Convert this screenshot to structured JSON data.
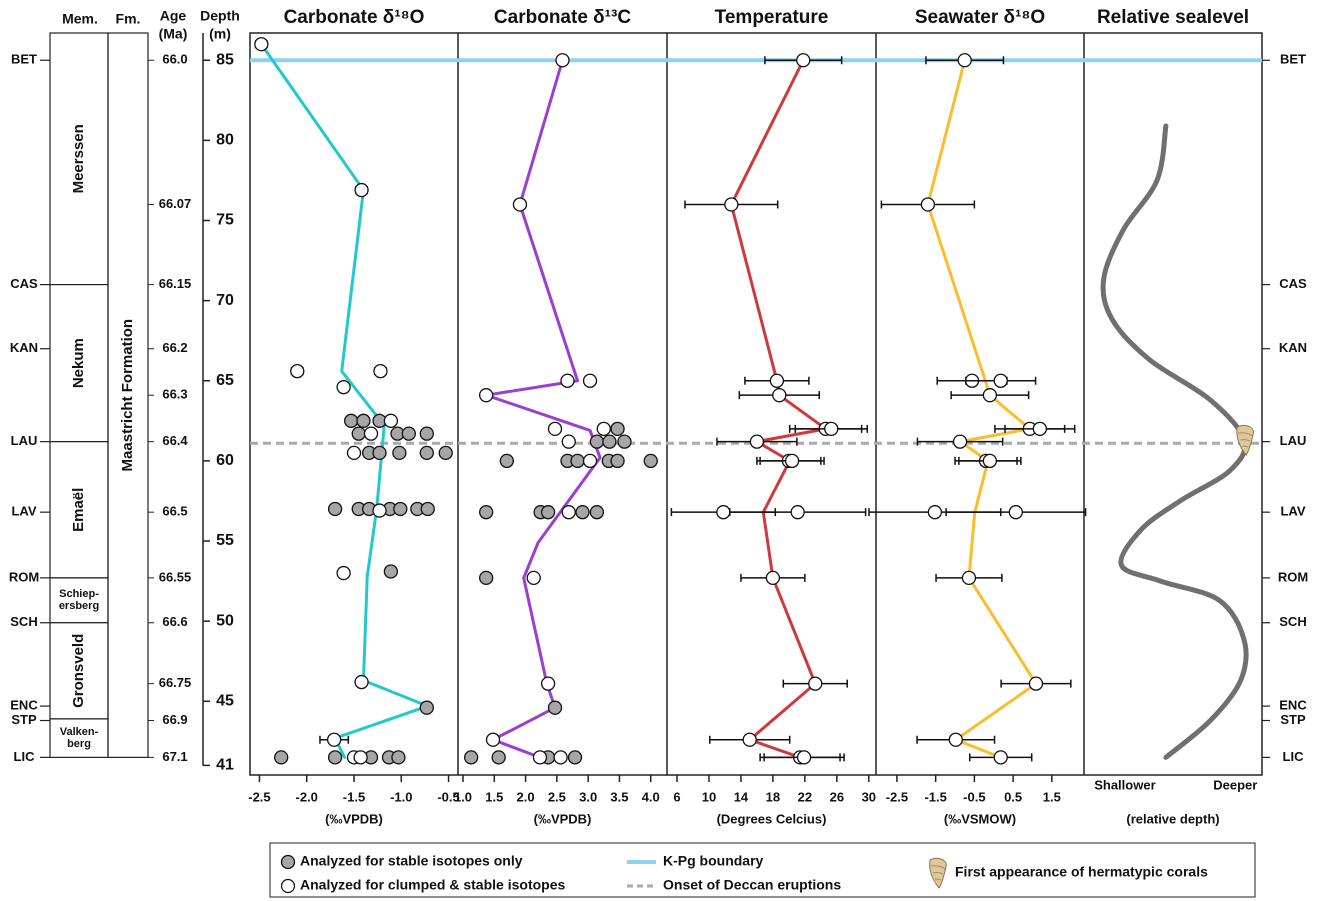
{
  "stratigraphy": {
    "member_header": "Mem.",
    "formation_header": "Fm.",
    "age_header": "Age",
    "age_unit": "(Ma)",
    "formation": "Maastricht Formation",
    "members": [
      {
        "lines": [
          "Meerssen"
        ],
        "base": 71.0
      },
      {
        "lines": [
          "Nekum"
        ],
        "base": 61.2
      },
      {
        "lines": [
          "Emaël"
        ],
        "base": 52.7
      },
      {
        "lines": [
          "Schiep-",
          "ersberg"
        ],
        "base": 49.9
      },
      {
        "lines": [
          "Gronsveld"
        ],
        "base": 43.9
      },
      {
        "lines": [
          "Valken-",
          "berg"
        ],
        "base": 41.5
      }
    ],
    "levels": [
      {
        "label": "BET",
        "depth": 85.0
      },
      {
        "label": "CAS",
        "depth": 71.0
      },
      {
        "label": "KAN",
        "depth": 67.0
      },
      {
        "label": "LAU",
        "depth": 61.2
      },
      {
        "label": "LAV",
        "depth": 56.8
      },
      {
        "label": "ROM",
        "depth": 52.7
      },
      {
        "label": "SCH",
        "depth": 49.9
      },
      {
        "label": "ENC",
        "depth": 44.7
      },
      {
        "label": "STP",
        "depth": 43.8
      },
      {
        "label": "LIC",
        "depth": 41.5
      }
    ],
    "ages": [
      {
        "label": "66.0",
        "depth": 85.0
      },
      {
        "label": "66.07",
        "depth": 76.0
      },
      {
        "label": "66.15",
        "depth": 71.0
      },
      {
        "label": "66.2",
        "depth": 67.0
      },
      {
        "label": "66.3",
        "depth": 64.1
      },
      {
        "label": "66.4",
        "depth": 61.2
      },
      {
        "label": "66.5",
        "depth": 56.8
      },
      {
        "label": "66.55",
        "depth": 52.7
      },
      {
        "label": "66.6",
        "depth": 49.9
      },
      {
        "label": "66.75",
        "depth": 46.1
      },
      {
        "label": "66.9",
        "depth": 43.8
      },
      {
        "label": "67.1",
        "depth": 41.5
      }
    ]
  },
  "depth_axis": {
    "label": "Depth",
    "unit": "(m)",
    "ylim": [
      40.4,
      86.7
    ],
    "yticks": [
      85,
      80,
      75,
      70,
      65,
      60,
      55,
      50,
      45,
      41
    ]
  },
  "chart_data": [
    {
      "type": "scatter",
      "title": "Carbonate δ¹⁸O",
      "xlabel": "(‰VPDB)",
      "xlim": [
        -2.6,
        -0.4
      ],
      "xticks": [
        -2.5,
        {
          "value": -2,
          "label": "-2.0"
        },
        -1.5,
        {
          "value": -1,
          "label": "-1.0"
        },
        -0.5
      ],
      "series": [
        {
          "style": "line",
          "color": "#22c8cc",
          "y": [
            86.0,
            76.9,
            65.6,
            62.2,
            57.0,
            52.8,
            46.3,
            44.7,
            42.7,
            41.5
          ],
          "values": [
            -2.48,
            -1.4,
            -1.63,
            -1.18,
            -1.26,
            -1.36,
            -1.4,
            -0.72,
            -1.7,
            -1.6
          ]
        },
        {
          "style": "points",
          "color": "#a6a6a6",
          "y": [
            62.5,
            62.5,
            62.5,
            61.7,
            61.7,
            61.7,
            61.7,
            60.5,
            60.5,
            60.5,
            60.5,
            60.5,
            57.0,
            57.0,
            57.0,
            57.0,
            57.0,
            57.0,
            57.0,
            53.1,
            44.6,
            41.5,
            41.5,
            41.5,
            41.5,
            41.5
          ],
          "values": [
            -1.53,
            -1.4,
            -1.23,
            -1.45,
            -1.04,
            -0.92,
            -0.73,
            -1.34,
            -1.23,
            -1.02,
            -0.73,
            -0.53,
            -1.7,
            -1.45,
            -1.34,
            -1.12,
            -1.01,
            -0.83,
            -0.72,
            -1.11,
            -0.73,
            -2.27,
            -1.7,
            -1.32,
            -1.13,
            -1.03
          ]
        },
        {
          "style": "points",
          "color": "#ffffff",
          "y": [
            86.0,
            76.9,
            65.6,
            65.6,
            64.6,
            62.5,
            61.7,
            60.5,
            56.9,
            53.0,
            46.2,
            42.6,
            41.5,
            41.5
          ],
          "values": [
            -2.48,
            -1.42,
            -2.1,
            -1.22,
            -1.61,
            -1.11,
            -1.32,
            -1.5,
            -1.23,
            -1.61,
            -1.42,
            -1.71,
            -1.5,
            -1.43
          ],
          "xerr": [
            0.06,
            0.06,
            0.06,
            0.06,
            0.05,
            0.05,
            0.05,
            0.05,
            0.05,
            0.05,
            0.05,
            0.15,
            0.05,
            0.05
          ]
        }
      ]
    },
    {
      "type": "scatter",
      "title": "Carbonate δ¹³C",
      "xlabel": "(‰VPDB)",
      "xlim": [
        0.92,
        4.26
      ],
      "xticks": [
        {
          "value": 1,
          "label": "1.0"
        },
        1.5,
        {
          "value": 2,
          "label": "2.0"
        },
        2.5,
        {
          "value": 3,
          "label": "3.0"
        },
        3.5,
        {
          "value": 4,
          "label": "4.0"
        }
      ],
      "series": [
        {
          "style": "line",
          "color": "#9a3fd0",
          "y": [
            85.0,
            76.0,
            65.0,
            64.1,
            61.9,
            60.2,
            54.9,
            52.7,
            46.1,
            44.6,
            42.6,
            41.5
          ],
          "values": [
            2.59,
            1.91,
            2.83,
            1.37,
            3.03,
            3.19,
            2.2,
            1.97,
            2.34,
            2.47,
            1.48,
            2.23
          ]
        },
        {
          "style": "points",
          "color": "#a6a6a6",
          "y": [
            62.0,
            61.2,
            61.2,
            61.2,
            60.0,
            60.0,
            60.0,
            60.0,
            60.0,
            60.0,
            56.8,
            56.8,
            56.8,
            56.8,
            56.8,
            52.7,
            44.6,
            41.5,
            41.5,
            41.5,
            41.5
          ],
          "values": [
            3.47,
            3.14,
            3.34,
            3.58,
            1.7,
            2.67,
            2.83,
            3.33,
            3.47,
            4.0,
            1.37,
            2.24,
            2.36,
            2.91,
            3.14,
            1.37,
            2.47,
            1.13,
            1.57,
            2.36,
            2.79
          ]
        },
        {
          "style": "points",
          "color": "#ffffff",
          "y": [
            85.0,
            76.0,
            65.0,
            65.0,
            64.1,
            62.0,
            62.0,
            61.2,
            60.0,
            56.8,
            52.7,
            46.1,
            42.6,
            41.5,
            41.5
          ],
          "values": [
            2.59,
            1.91,
            2.67,
            3.03,
            1.37,
            2.47,
            3.25,
            2.69,
            3.03,
            2.69,
            2.13,
            2.36,
            1.48,
            2.23,
            2.56
          ]
        }
      ]
    },
    {
      "type": "scatter",
      "title": "Temperature",
      "xlabel": "(Degrees Celcius)",
      "xlim": [
        4.75,
        30.9
      ],
      "xticks": [
        6,
        10,
        14,
        18,
        22,
        26,
        30
      ],
      "series": [
        {
          "style": "line",
          "color": "#d0393a",
          "y": [
            85.0,
            76.0,
            65.0,
            64.1,
            62.0,
            61.2,
            60.0,
            56.8,
            52.7,
            46.1,
            42.6,
            41.5
          ],
          "values": [
            21.8,
            12.8,
            18.5,
            18.8,
            24.6,
            16.0,
            20.1,
            16.8,
            18.0,
            23.3,
            15.1,
            21.4
          ]
        },
        {
          "style": "points",
          "color": "#ffffff",
          "y": [
            85.0,
            76.0,
            65.0,
            64.1,
            62.0,
            62.0,
            61.2,
            60.0,
            60.0,
            56.8,
            56.8,
            52.7,
            46.1,
            42.6,
            41.5,
            41.5
          ],
          "values": [
            21.8,
            12.8,
            18.5,
            18.8,
            24.6,
            25.3,
            16.0,
            20.0,
            20.4,
            11.8,
            21.1,
            18.0,
            23.3,
            15.1,
            21.4,
            21.9
          ],
          "xerr": [
            4.8,
            5.8,
            4.0,
            5.0,
            4.5,
            4.5,
            5.0,
            4.0,
            4.0,
            6.5,
            8.5,
            4.0,
            4.0,
            5.0,
            5.0,
            5.0
          ]
        }
      ]
    },
    {
      "type": "scatter",
      "title": "Seawater δ¹⁸O",
      "xlabel": "(‰VSMOW)",
      "xlim": [
        -3.04,
        2.33
      ],
      "xticks": [
        -2.5,
        -1.5,
        -0.5,
        0.5,
        1.5
      ],
      "series": [
        {
          "style": "line",
          "color": "#fbbd2c",
          "y": [
            85.0,
            76.0,
            65.1,
            64.1,
            62.0,
            61.2,
            60.0,
            56.8,
            52.7,
            46.1,
            42.6,
            41.5
          ],
          "values": [
            -0.75,
            -1.7,
            -0.23,
            -0.1,
            0.93,
            -0.87,
            -0.15,
            -0.49,
            -0.64,
            1.09,
            -0.98,
            0.18
          ]
        },
        {
          "style": "points",
          "color": "#ffffff",
          "y": [
            85.0,
            76.0,
            65.0,
            65.0,
            64.1,
            62.0,
            62.0,
            61.2,
            60.0,
            60.0,
            56.8,
            56.8,
            52.7,
            46.1,
            42.6,
            41.5
          ],
          "values": [
            -0.75,
            -1.7,
            -0.56,
            0.18,
            -0.1,
            0.93,
            1.19,
            -0.87,
            -0.2,
            -0.1,
            -1.52,
            0.57,
            -0.64,
            1.09,
            -0.98,
            0.18
          ],
          "xerr": [
            1.0,
            1.2,
            0.9,
            0.9,
            1.0,
            0.9,
            0.9,
            1.1,
            0.8,
            0.8,
            1.7,
            1.8,
            0.85,
            0.9,
            1.0,
            0.8
          ]
        }
      ]
    },
    {
      "type": "line",
      "title": "Relative sealevel",
      "xlabel": "(relative depth)",
      "xlim": [
        0,
        1
      ],
      "smooth": true,
      "tick_marks": false,
      "xticks": [
        {
          "value": 0.23,
          "label": "Shallower"
        },
        {
          "value": 0.85,
          "label": "Deeper"
        }
      ],
      "series": [
        {
          "style": "line",
          "color": "#707070",
          "y": [
            80.9,
            77.5,
            74.4,
            71.3,
            68.8,
            66.3,
            63.8,
            61.3,
            59.4,
            57.5,
            55.7,
            53.5,
            52.5,
            51.3,
            48.8,
            46.3,
            43.8,
            41.5
          ],
          "values": [
            0.46,
            0.41,
            0.22,
            0.11,
            0.16,
            0.37,
            0.71,
            0.9,
            0.82,
            0.54,
            0.32,
            0.21,
            0.43,
            0.76,
            0.9,
            0.88,
            0.71,
            0.46
          ]
        }
      ]
    }
  ],
  "boundaries": [
    {
      "label": "K-Pg boundary",
      "depth": 85.0,
      "color": "#8fd1f0",
      "dashed": false
    },
    {
      "label": "Onset of Deccan eruptions",
      "depth": 61.1,
      "color": "#a9a9a9",
      "dashed": true
    }
  ],
  "legend": [
    {
      "label": "Analyzed for stable isotopes only",
      "color": "#a6a6a6"
    },
    {
      "label": "Analyzed for clumped & stable isotopes",
      "color": "#ffffff"
    }
  ],
  "coral": {
    "label": "First appearance of hermatypic corals",
    "depth": 61.3,
    "value": 0.9,
    "panel": 4
  }
}
